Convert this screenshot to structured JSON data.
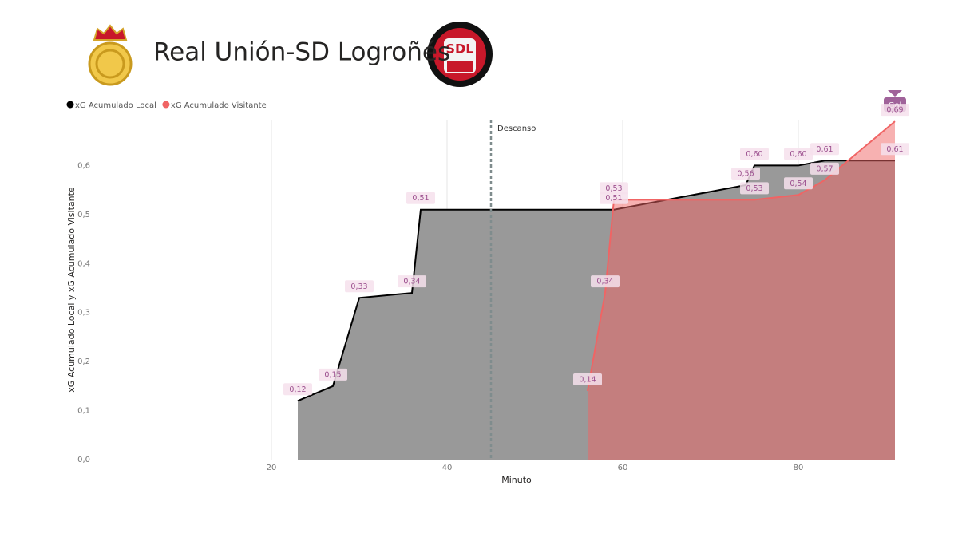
{
  "chart_data": {
    "type": "area",
    "title": "Real Unión-SD Logroñés",
    "xlabel": "Minuto",
    "ylabel": "xG Acumulado Local y xG Acumulado Visitante",
    "xlim": [
      0,
      92
    ],
    "ylim": [
      0,
      0.7
    ],
    "xticks": [
      20,
      40,
      60,
      80
    ],
    "yticks": [
      {
        "value": 0,
        "label": "0,0"
      },
      {
        "value": 0.1,
        "label": "0,1"
      },
      {
        "value": 0.2,
        "label": "0,2"
      },
      {
        "value": 0.3,
        "label": "0,3"
      },
      {
        "value": 0.4,
        "label": "0,4"
      },
      {
        "value": 0.5,
        "label": "0,5"
      },
      {
        "value": 0.6,
        "label": "0,6"
      }
    ],
    "grid": true,
    "legend": "top-left",
    "series": [
      {
        "name": "xG Acumulado Local",
        "color": "#000000",
        "fill": "#999999",
        "x": [
          23,
          27,
          30,
          36,
          37,
          59,
          74,
          75,
          80,
          83,
          91
        ],
        "values": [
          0.12,
          0.15,
          0.33,
          0.34,
          0.51,
          0.51,
          0.56,
          0.6,
          0.6,
          0.61,
          0.61
        ],
        "value_labels": [
          "0,12",
          "0,15",
          "0,33",
          "0,34",
          "0,51",
          "0,51",
          "0,56",
          "0,60",
          "0,60",
          "0,61",
          "0,61"
        ]
      },
      {
        "name": "xG Acumulado Visitante",
        "color": "#f06464",
        "fill": "#f06464",
        "x": [
          56,
          58,
          59,
          75,
          80,
          83,
          91
        ],
        "values": [
          0.14,
          0.34,
          0.53,
          0.53,
          0.54,
          0.57,
          0.69
        ],
        "value_labels": [
          "0,14",
          "0,34",
          "0,53",
          "0,53",
          "0,54",
          "0,57",
          "0,69"
        ]
      }
    ],
    "annotations": [
      {
        "text": "Descanso",
        "x": 45
      },
      {
        "text": "Gol",
        "x": 91
      }
    ]
  }
}
